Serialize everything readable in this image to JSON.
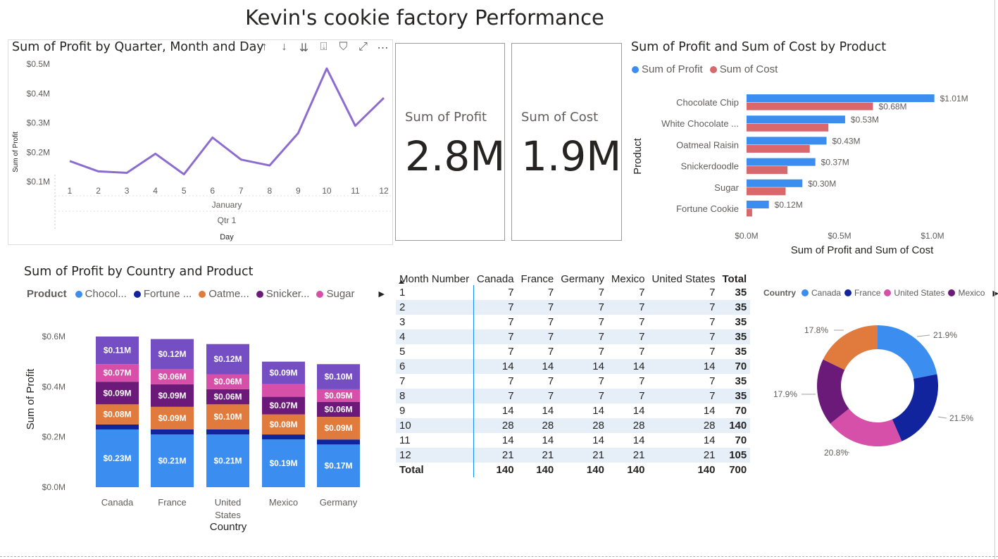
{
  "page_title": "Kevin's cookie factory Performance",
  "line_visual": {
    "title": "Sum of Profit by Quarter, Month and Day",
    "icons": [
      "arrow-up-icon",
      "arrow-down-icon",
      "double-arrow-down-icon",
      "expand-down-icon",
      "filter-icon",
      "focus-mode-icon",
      "more-options-icon"
    ],
    "icon_glyphs": [
      "↑",
      "↓",
      "⇊",
      "⍗",
      "⛉",
      "⤢",
      "⋯"
    ],
    "xlabel_month": "January",
    "xlabel_qtr": "Qtr 1",
    "xlabel": "Day",
    "ylabel": "Sum of Profit"
  },
  "cards": [
    {
      "label": "Sum of Profit",
      "value": "2.8M"
    },
    {
      "label": "Sum of Cost",
      "value": "1.9M"
    }
  ],
  "hbar_visual": {
    "title": "Sum of Profit and Sum of Cost by Product",
    "legend": [
      {
        "name": "Sum of  Profit",
        "color": "#3b8ef0"
      },
      {
        "name": "Sum of  Cost",
        "color": "#d9686d"
      }
    ],
    "ylabel": "Product",
    "xlabel": "Sum of Profit and Sum of Cost"
  },
  "stack_visual": {
    "title": "Sum of Profit by Country and Product",
    "legend_title": "Product",
    "legend": [
      {
        "name": "Chocol...",
        "color": "#3b8ef0"
      },
      {
        "name": "Fortune ...",
        "color": "#12239e"
      },
      {
        "name": "Oatme...",
        "color": "#e07a3d"
      },
      {
        "name": "Snicker...",
        "color": "#6b1a7a"
      },
      {
        "name": "Sugar",
        "color": "#d64fa8"
      }
    ],
    "legend_next": "▶",
    "ylabel": "Sum of Profit",
    "xlabel": "Country"
  },
  "matrix": {
    "headers": [
      "Month Number",
      "Canada",
      "France",
      "Germany",
      "Mexico",
      "United States",
      "Total"
    ],
    "rows": [
      [
        "1",
        "7",
        "7",
        "7",
        "7",
        "7",
        "35"
      ],
      [
        "2",
        "7",
        "7",
        "7",
        "7",
        "7",
        "35"
      ],
      [
        "3",
        "7",
        "7",
        "7",
        "7",
        "7",
        "35"
      ],
      [
        "4",
        "7",
        "7",
        "7",
        "7",
        "7",
        "35"
      ],
      [
        "5",
        "7",
        "7",
        "7",
        "7",
        "7",
        "35"
      ],
      [
        "6",
        "14",
        "14",
        "14",
        "14",
        "14",
        "70"
      ],
      [
        "7",
        "7",
        "7",
        "7",
        "7",
        "7",
        "35"
      ],
      [
        "8",
        "7",
        "7",
        "7",
        "7",
        "7",
        "35"
      ],
      [
        "9",
        "14",
        "14",
        "14",
        "14",
        "14",
        "70"
      ],
      [
        "10",
        "28",
        "28",
        "28",
        "28",
        "28",
        "140"
      ],
      [
        "11",
        "14",
        "14",
        "14",
        "14",
        "14",
        "70"
      ],
      [
        "12",
        "21",
        "21",
        "21",
        "21",
        "21",
        "105"
      ]
    ],
    "total_row": [
      "Total",
      "140",
      "140",
      "140",
      "140",
      "140",
      "700"
    ]
  },
  "donut_visual": {
    "legend_title": "Country",
    "legend_next": "▶"
  },
  "chart_data": [
    {
      "type": "line",
      "title": "Sum of Profit by Quarter, Month and Day",
      "xlabel": "Day",
      "ylabel": "Sum of Profit",
      "x": [
        1,
        2,
        3,
        4,
        5,
        6,
        7,
        8,
        9,
        10,
        11,
        12
      ],
      "series": [
        {
          "values": [
            0.17,
            0.135,
            0.13,
            0.195,
            0.125,
            0.25,
            0.175,
            0.155,
            0.265,
            0.485,
            0.29,
            0.385
          ],
          "color": "#8d6ccf"
        }
      ],
      "yticks": [
        "$0.1M",
        "$0.2M",
        "$0.3M",
        "$0.4M",
        "$0.5M"
      ],
      "ylim": [
        0.1,
        0.5
      ],
      "units": "$M"
    },
    {
      "type": "bar",
      "orientation": "horizontal",
      "title": "Sum of Profit and Sum of Cost by Product",
      "categories": [
        "Chocolate Chip",
        "White Chocolate ...",
        "Oatmeal Raisin",
        "Snickerdoodle",
        "Sugar",
        "Fortune Cookie"
      ],
      "series": [
        {
          "name": "Sum of  Profit",
          "values": [
            1.01,
            0.53,
            0.43,
            0.37,
            0.3,
            0.12
          ],
          "labels": [
            "$1.01M",
            "$0.53M",
            "$0.43M",
            "$0.37M",
            "$0.30M",
            "$0.12M"
          ],
          "color": "#3b8ef0"
        },
        {
          "name": "Sum of  Cost",
          "values": [
            0.68,
            0.44,
            0.34,
            0.22,
            0.21,
            0.03
          ],
          "labels": [
            "$0.68M",
            "",
            "",
            "",
            "",
            ""
          ],
          "color": "#d9686d"
        }
      ],
      "xticks": [
        "$0.0M",
        "$0.5M",
        "$1.0M"
      ],
      "xlim": [
        0,
        1.0
      ],
      "xlabel": "Sum of Profit and Sum of Cost",
      "ylabel": "Product"
    },
    {
      "type": "bar",
      "stacked": true,
      "title": "Sum of Profit by Country and Product",
      "categories": [
        "Canada",
        "France",
        "United States",
        "Mexico",
        "Germany"
      ],
      "series": [
        {
          "name": "Chocol...",
          "values": [
            0.23,
            0.21,
            0.21,
            0.19,
            0.17
          ],
          "labels": [
            "$0.23M",
            "$0.21M",
            "$0.21M",
            "$0.19M",
            "$0.17M"
          ],
          "color": "#3b8ef0"
        },
        {
          "name": "Fortune ...",
          "values": [
            0.02,
            0.02,
            0.02,
            0.02,
            0.02
          ],
          "labels": [
            "",
            "",
            "",
            "",
            ""
          ],
          "color": "#12239e"
        },
        {
          "name": "Oatme...",
          "values": [
            0.08,
            0.09,
            0.1,
            0.08,
            0.09
          ],
          "labels": [
            "$0.08M",
            "$0.09M",
            "$0.10M",
            "$0.08M",
            "$0.09M"
          ],
          "color": "#e07a3d"
        },
        {
          "name": "Snicker...",
          "values": [
            0.09,
            0.09,
            0.06,
            0.07,
            0.06
          ],
          "labels": [
            "$0.09M",
            "$0.09M",
            "$0.06M",
            "$0.07M",
            "$0.06M"
          ],
          "color": "#6b1a7a"
        },
        {
          "name": "Sugar",
          "values": [
            0.07,
            0.06,
            0.06,
            0.05,
            0.05
          ],
          "labels": [
            "$0.07M",
            "$0.06M",
            "$0.06M",
            "",
            "$0.05M"
          ],
          "color": "#d64fa8"
        },
        {
          "name": "White Chocolate",
          "values": [
            0.11,
            0.12,
            0.12,
            0.09,
            0.1
          ],
          "labels": [
            "$0.11M",
            "$0.12M",
            "$0.12M",
            "$0.09M",
            "$0.10M"
          ],
          "color": "#744ec2"
        }
      ],
      "yticks": [
        "$0.0M",
        "$0.2M",
        "$0.4M",
        "$0.6M"
      ],
      "ylim": [
        0,
        0.6
      ],
      "xlabel": "Country",
      "ylabel": "Sum of Profit"
    },
    {
      "type": "pie",
      "donut": true,
      "legend_title": "Country",
      "categories": [
        "Canada",
        "France",
        "United States",
        "Mexico",
        "Germany"
      ],
      "values": [
        21.9,
        21.5,
        20.8,
        17.9,
        17.8
      ],
      "labels": [
        "21.9%",
        "21.5%",
        "20.8%",
        "17.9%",
        "17.8%"
      ],
      "colors": [
        "#3b8ef0",
        "#12239e",
        "#d64fa8",
        "#6b1a7a",
        "#e07a3d"
      ],
      "legend_visible": [
        "Canada",
        "France",
        "United States",
        "Mexico"
      ]
    }
  ]
}
